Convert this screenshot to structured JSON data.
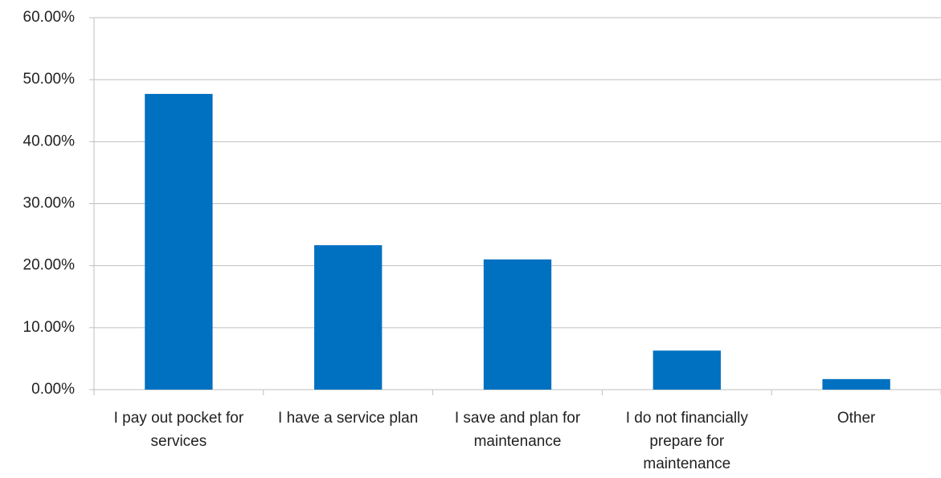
{
  "chart_data": {
    "type": "bar",
    "categories": [
      "I pay out pocket for services",
      "I have a service plan",
      "I save and plan for maintenance",
      "I do not financially prepare for maintenance",
      "Other"
    ],
    "values": [
      47.7,
      23.3,
      21.0,
      6.3,
      1.7
    ],
    "color": "#0070c0",
    "ylim": [
      0,
      60
    ],
    "yticks": [
      {
        "value": 0,
        "label": "0.00%"
      },
      {
        "value": 10,
        "label": "10.00%"
      },
      {
        "value": 20,
        "label": "20.00%"
      },
      {
        "value": 30,
        "label": "30.00%"
      },
      {
        "value": 40,
        "label": "40.00%"
      },
      {
        "value": 50,
        "label": "50.00%"
      },
      {
        "value": 60,
        "label": "60.00%"
      }
    ],
    "grid": true
  }
}
